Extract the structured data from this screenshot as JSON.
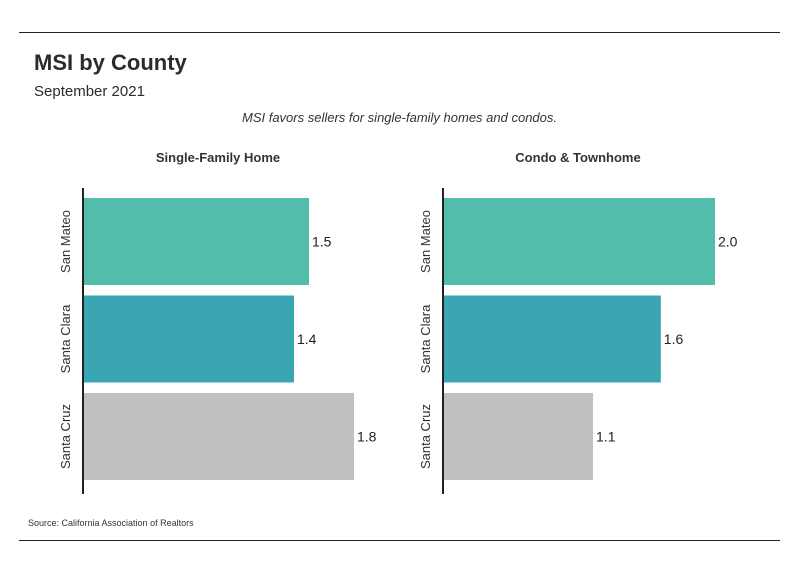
{
  "header": {
    "title": "MSI by County",
    "subtitle": "September 2021",
    "headline": "MSI favors sellers for single-family homes and condos."
  },
  "footer": {
    "source": "Source:  California Association of Realtors"
  },
  "colors": {
    "san_mateo": "#52bdaa",
    "santa_clara": "#3aa6b3",
    "santa_cruz": "#c0c0c0",
    "axis": "#222222"
  },
  "chart_data": [
    {
      "type": "bar",
      "orientation": "horizontal",
      "title": "Single-Family Home",
      "categories": [
        "San Mateo",
        "Santa Clara",
        "Santa Cruz"
      ],
      "values": [
        1.5,
        1.4,
        1.8
      ],
      "xlim": [
        0,
        1.8
      ],
      "xlabel": "",
      "ylabel": "",
      "grid": false
    },
    {
      "type": "bar",
      "orientation": "horizontal",
      "title": "Condo & Townhome",
      "categories": [
        "San Mateo",
        "Santa Clara",
        "Santa Cruz"
      ],
      "values": [
        2.0,
        1.6,
        1.1
      ],
      "xlim": [
        0,
        2.0
      ],
      "xlabel": "",
      "ylabel": "",
      "grid": false
    }
  ]
}
